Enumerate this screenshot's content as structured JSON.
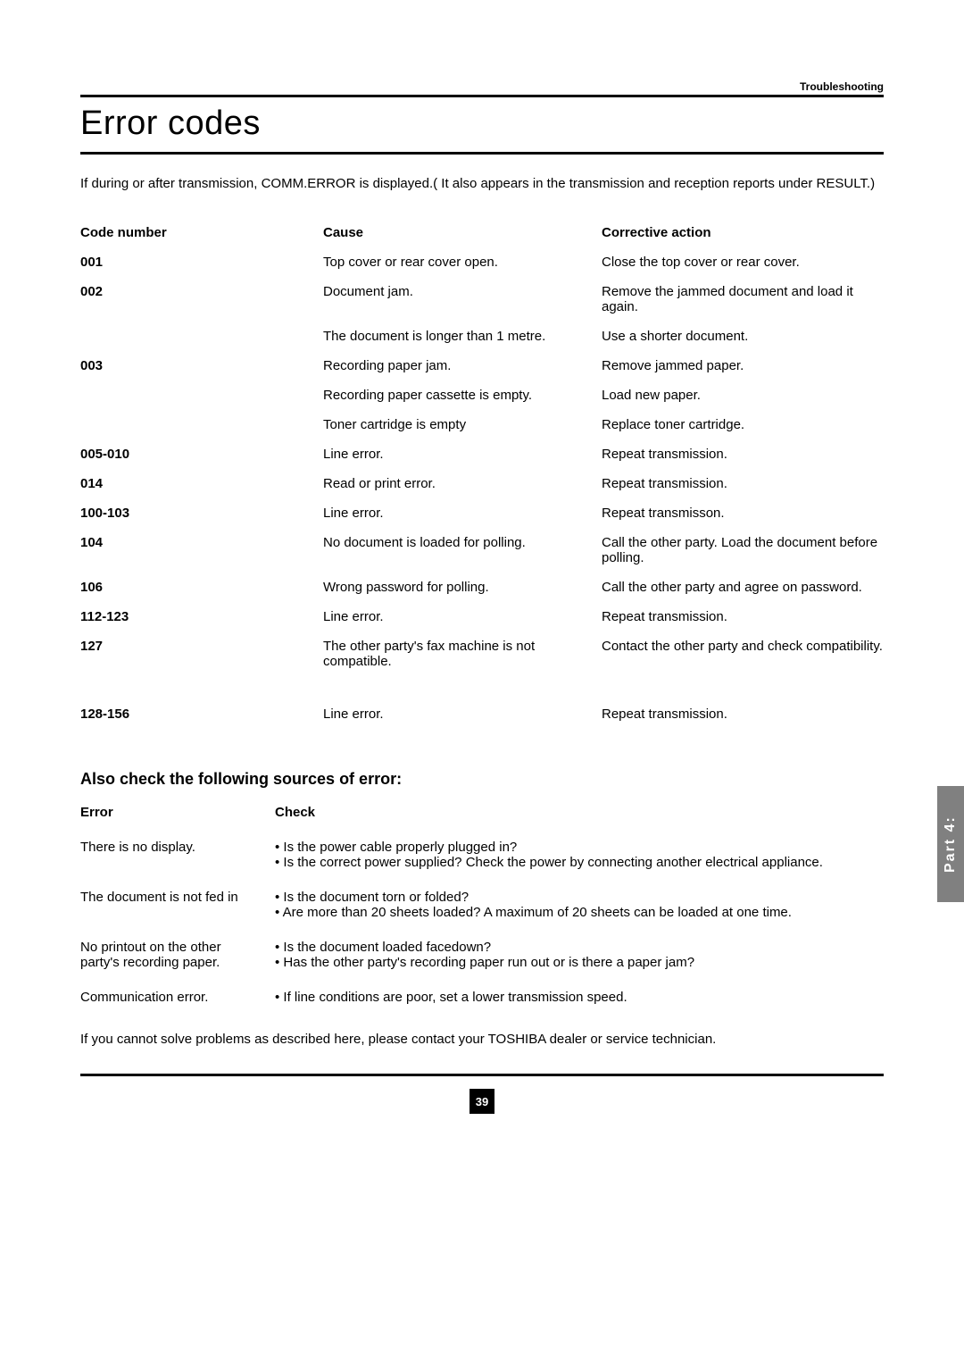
{
  "header_label": "Troubleshooting",
  "title": "Error codes",
  "intro": "If during or after transmission, COMM.ERROR is displayed.( It also appears in the transmission and reception reports under RESULT.)",
  "code_header": {
    "c1": "Code number",
    "c2": "Cause",
    "c3": "Corrective action"
  },
  "codes": [
    {
      "code": "001",
      "cause": "Top cover or rear cover open.",
      "action": "Close the top cover or rear cover."
    },
    {
      "code": "002",
      "cause": "Document jam.",
      "action": "Remove the jammed document and load it again."
    },
    {
      "code": "",
      "cause": "The document is longer than 1 metre.",
      "action": "Use a shorter document."
    },
    {
      "code": "003",
      "cause": "Recording paper jam.",
      "action": "Remove jammed paper."
    },
    {
      "code": "",
      "cause": "Recording paper cassette is empty.",
      "action": "Load new paper."
    },
    {
      "code": "",
      "cause": "Toner cartridge is empty",
      "action": "Replace toner cartridge."
    },
    {
      "code": "005-010",
      "cause": "Line error.",
      "action": "Repeat transmission."
    },
    {
      "code": "014",
      "cause": "Read or print error.",
      "action": "Repeat transmission."
    },
    {
      "code": "100-103",
      "cause": "Line error.",
      "action": "Repeat transmisson."
    },
    {
      "code": "104",
      "cause": "No document is loaded for polling.",
      "action": "Call the other party. Load the document before polling."
    },
    {
      "code": "106",
      "cause": "Wrong password for polling.",
      "action": "Call the other party and agree on password."
    },
    {
      "code": "112-123",
      "cause": "Line error.",
      "action": "Repeat transmission."
    },
    {
      "code": "127",
      "cause": "The other party's fax machine is not compatible.",
      "action": "Contact the other party and check compatibility."
    },
    {
      "code": "128-156",
      "cause": "Line error.",
      "action": "Repeat transmission."
    }
  ],
  "section2_title": "Also check the following sources of error:",
  "check_header": {
    "c1": "Error",
    "c2": "Check"
  },
  "checks": [
    {
      "error": "There is no display.",
      "items": [
        "Is the power cable properly plugged in?",
        "Is the correct power supplied? Check the power by connecting another electrical appliance."
      ]
    },
    {
      "error": "The document is not fed in",
      "items": [
        "Is the document torn or folded?",
        "Are more than 20 sheets loaded? A maximum of 20 sheets can be loaded at one time."
      ]
    },
    {
      "error": "No printout on the other party's recording paper.",
      "items": [
        "Is the document loaded facedown?",
        "Has the other party's recording paper run out or is there a paper jam?"
      ]
    },
    {
      "error": "Communication error.",
      "items": [
        "If line conditions are poor, set a lower transmission speed."
      ]
    }
  ],
  "footer_note": "If you cannot solve problems as described here, please contact your TOSHIBA dealer or service technician.",
  "page_number": "39",
  "side_tab": "Part 4:"
}
